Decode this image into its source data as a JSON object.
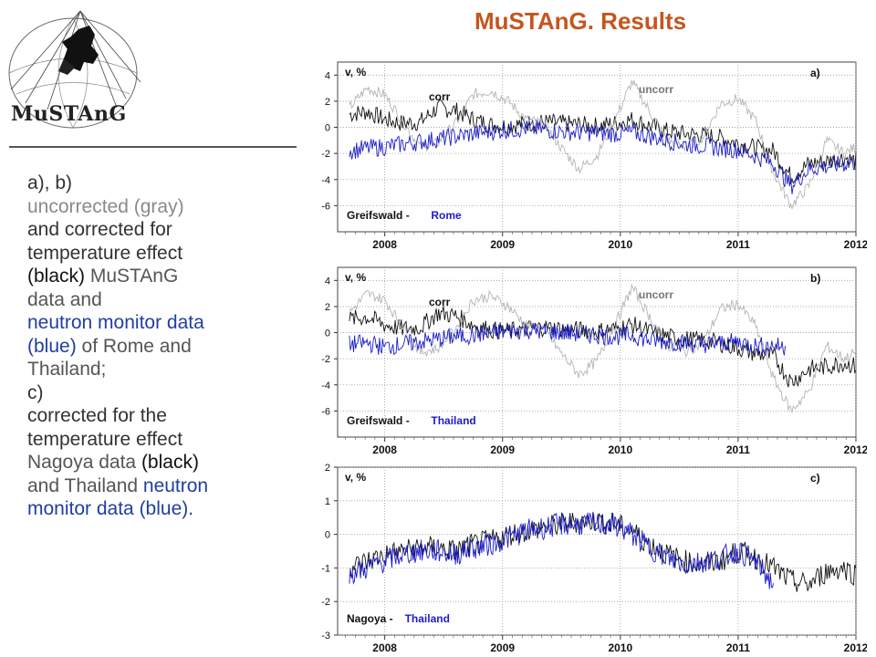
{
  "title": "MuSTAnG. Results",
  "logo": {
    "text": "MuSTAnG",
    "icon": "horse-over-globe-logo"
  },
  "description": {
    "line_ab": "a), b)",
    "uncorr_text": "uncorrected (gray)",
    "corr_line1": "and corrected for",
    "corr_line2": "temperature effect",
    "corr_line3a": "(black)",
    "corr_line3b": " MuSTAnG",
    "corr_line4": "data and",
    "nm_line1": "neutron monitor data",
    "nm_line2a": "(blue)",
    "nm_line2b": " of Rome and",
    "nm_line3": "Thailand;",
    "line_c": "c)",
    "c_line1": "corrected for the",
    "c_line2": "temperature effect",
    "c_line3a": "Nagoya data ",
    "c_line3b": "(black)",
    "c_line4a": "and  Thailand ",
    "c_line4b": "neutron",
    "c_line5": "monitor data (blue).",
    "colors": {
      "gray": "#8a8a8a",
      "blue": "#1f3f9f",
      "text": "#333333"
    }
  },
  "chart_data": [
    {
      "type": "line",
      "panel_label": "a)",
      "ylabel": "v, %",
      "ylim": [
        -8,
        5
      ],
      "yticks": [
        4,
        2,
        0,
        -2,
        -4,
        -6
      ],
      "xlim": [
        2007.6,
        2012.0
      ],
      "xticks": [
        "2008",
        "2009",
        "2010",
        "2011",
        "2012"
      ],
      "station_label_black": "Greifswald -",
      "station_label_blue": "Rome",
      "annotations": [
        "corr",
        "uncorr"
      ],
      "series": [
        {
          "name": "corr",
          "color": "#111111",
          "x": [
            2007.7,
            2007.85,
            2008.0,
            2008.15,
            2008.3,
            2008.45,
            2008.6,
            2008.75,
            2008.9,
            2009.05,
            2009.2,
            2009.35,
            2009.5,
            2009.65,
            2009.8,
            2009.95,
            2010.1,
            2010.25,
            2010.4,
            2010.55,
            2010.7,
            2010.85,
            2011.0,
            2011.15,
            2011.3,
            2011.45,
            2011.6,
            2011.75,
            2011.9,
            2012.0
          ],
          "y": [
            1,
            1.2,
            0.6,
            0.3,
            0.4,
            1.5,
            1.3,
            0.6,
            0.2,
            0.1,
            0.3,
            0.4,
            0.3,
            0.2,
            0.1,
            0.3,
            0.6,
            0.1,
            -0.3,
            -0.5,
            -0.6,
            -0.8,
            -1.2,
            -1.6,
            -1.8,
            -3.8,
            -2.8,
            -2.6,
            -2.3,
            -2.6
          ]
        },
        {
          "name": "uncorr",
          "color": "#b4b4b4",
          "x": [
            2007.7,
            2007.85,
            2008.0,
            2008.15,
            2008.3,
            2008.45,
            2008.6,
            2008.75,
            2008.9,
            2009.05,
            2009.2,
            2009.35,
            2009.5,
            2009.65,
            2009.8,
            2009.95,
            2010.1,
            2010.25,
            2010.4,
            2010.55,
            2010.7,
            2010.85,
            2011.0,
            2011.15,
            2011.3,
            2011.45,
            2011.6,
            2011.75,
            2011.9,
            2012.0
          ],
          "y": [
            1.5,
            3,
            2.5,
            0.5,
            -1.5,
            -1.2,
            0.3,
            2.5,
            2.8,
            2,
            0.6,
            0.3,
            -1.6,
            -3.2,
            -2.2,
            0.5,
            3.5,
            1.2,
            -1,
            -1.5,
            -0.8,
            1.8,
            2.2,
            0.5,
            -3.5,
            -6,
            -4.5,
            -1,
            -2,
            -1.5
          ]
        },
        {
          "name": "Rome",
          "color": "#1c1cc8",
          "x": [
            2007.7,
            2007.85,
            2008.0,
            2008.15,
            2008.3,
            2008.45,
            2008.6,
            2008.75,
            2008.9,
            2009.05,
            2009.2,
            2009.35,
            2009.5,
            2009.65,
            2009.8,
            2009.95,
            2010.1,
            2010.25,
            2010.4,
            2010.55,
            2010.7,
            2010.85,
            2011.0,
            2011.15,
            2011.3,
            2011.45,
            2011.6,
            2011.75,
            2011.9,
            2012.0
          ],
          "y": [
            -1.8,
            -1.6,
            -1.5,
            -1.3,
            -1.1,
            -0.9,
            -0.7,
            -0.5,
            -0.3,
            -0.2,
            -0.1,
            -0.2,
            -0.3,
            -0.4,
            -0.4,
            -0.5,
            -0.4,
            -0.7,
            -1,
            -1.3,
            -1.4,
            -1.6,
            -1.7,
            -2.2,
            -2.8,
            -4.5,
            -3.2,
            -3,
            -2.8,
            -2.7
          ]
        }
      ]
    },
    {
      "type": "line",
      "panel_label": "b)",
      "ylabel": "v, %",
      "ylim": [
        -8,
        5
      ],
      "yticks": [
        4,
        2,
        0,
        -2,
        -4,
        -6
      ],
      "xlim": [
        2007.6,
        2012.0
      ],
      "xticks": [
        "2008",
        "2009",
        "2010",
        "2011",
        "2012"
      ],
      "station_label_black": "Greifswald -",
      "station_label_blue": "Thailand",
      "annotations": [
        "corr",
        "uncorr"
      ],
      "series": [
        {
          "name": "corr",
          "color": "#111111",
          "x": [
            2007.7,
            2007.85,
            2008.0,
            2008.15,
            2008.3,
            2008.45,
            2008.6,
            2008.75,
            2008.9,
            2009.05,
            2009.2,
            2009.35,
            2009.5,
            2009.65,
            2009.8,
            2009.95,
            2010.1,
            2010.25,
            2010.4,
            2010.55,
            2010.7,
            2010.85,
            2011.0,
            2011.15,
            2011.3,
            2011.45,
            2011.6,
            2011.75,
            2011.9,
            2012.0
          ],
          "y": [
            1,
            1.2,
            0.6,
            0.3,
            0.4,
            1.5,
            1.3,
            0.6,
            0.2,
            0.1,
            0.3,
            0.4,
            0.3,
            0.2,
            0.1,
            0.3,
            0.6,
            0.1,
            -0.3,
            -0.5,
            -0.6,
            -0.8,
            -1.2,
            -1.6,
            -1.8,
            -3.8,
            -2.8,
            -2.6,
            -2.3,
            -2.6
          ]
        },
        {
          "name": "uncorr",
          "color": "#b4b4b4",
          "x": [
            2007.7,
            2007.85,
            2008.0,
            2008.15,
            2008.3,
            2008.45,
            2008.6,
            2008.75,
            2008.9,
            2009.05,
            2009.2,
            2009.35,
            2009.5,
            2009.65,
            2009.8,
            2009.95,
            2010.1,
            2010.25,
            2010.4,
            2010.55,
            2010.7,
            2010.85,
            2011.0,
            2011.15,
            2011.3,
            2011.45,
            2011.6,
            2011.75,
            2011.9,
            2012.0
          ],
          "y": [
            1.5,
            3,
            2.5,
            0.5,
            -1.5,
            -1.2,
            0.3,
            2.5,
            2.8,
            2,
            0.6,
            0.3,
            -1.6,
            -3.2,
            -2.2,
            0.5,
            3.5,
            1.2,
            -1,
            -1.5,
            -0.8,
            1.8,
            2.2,
            0.5,
            -3.5,
            -6,
            -4.5,
            -1,
            -2,
            -1.5
          ]
        },
        {
          "name": "Thailand",
          "color": "#1c1cc8",
          "x": [
            2007.7,
            2007.85,
            2008.0,
            2008.15,
            2008.3,
            2008.45,
            2008.6,
            2008.75,
            2008.9,
            2009.05,
            2009.2,
            2009.35,
            2009.5,
            2009.65,
            2009.8,
            2009.95,
            2010.1,
            2010.25,
            2010.4,
            2010.55,
            2010.7,
            2010.85,
            2011.0,
            2011.15,
            2011.3,
            2011.4
          ],
          "y": [
            -0.9,
            -0.8,
            -1.1,
            -0.9,
            -0.7,
            -0.5,
            -0.3,
            -0.2,
            0,
            0.1,
            0.2,
            0.1,
            0,
            -0.1,
            -0.2,
            -0.3,
            -0.2,
            -0.6,
            -0.7,
            -0.8,
            -0.9,
            -0.8,
            -0.7,
            -1,
            -1,
            -1.1
          ]
        }
      ]
    },
    {
      "type": "line",
      "panel_label": "c)",
      "ylabel": "v, %",
      "ylim": [
        -3,
        2
      ],
      "yticks": [
        2,
        1,
        0,
        -1,
        -2,
        -3
      ],
      "xlim": [
        2007.6,
        2012.0
      ],
      "xticks": [
        "2008",
        "2009",
        "2010",
        "2011",
        "2012"
      ],
      "station_label_black": "Nagoya -",
      "station_label_blue": "Thailand",
      "annotations": [],
      "series": [
        {
          "name": "Nagoya",
          "color": "#111111",
          "x": [
            2007.7,
            2007.85,
            2008.0,
            2008.15,
            2008.3,
            2008.45,
            2008.6,
            2008.75,
            2008.9,
            2009.05,
            2009.2,
            2009.35,
            2009.5,
            2009.65,
            2009.8,
            2009.95,
            2010.1,
            2010.25,
            2010.4,
            2010.55,
            2010.7,
            2010.85,
            2011.0,
            2011.15,
            2011.3,
            2011.45,
            2011.6,
            2011.75,
            2011.9,
            2012.0
          ],
          "y": [
            -1,
            -0.8,
            -0.6,
            -0.5,
            -0.4,
            -0.4,
            -0.5,
            -0.3,
            -0.2,
            0,
            0.1,
            0.2,
            0.3,
            0.4,
            0.4,
            0.3,
            0.1,
            -0.3,
            -0.6,
            -0.8,
            -0.9,
            -0.8,
            -0.5,
            -0.7,
            -1,
            -1.4,
            -1.5,
            -1.1,
            -1,
            -1.2
          ]
        },
        {
          "name": "Thailand",
          "color": "#1c1cc8",
          "x": [
            2007.7,
            2007.85,
            2008.0,
            2008.15,
            2008.3,
            2008.45,
            2008.6,
            2008.75,
            2008.9,
            2009.05,
            2009.2,
            2009.35,
            2009.5,
            2009.65,
            2009.8,
            2009.95,
            2010.1,
            2010.25,
            2010.4,
            2010.55,
            2010.7,
            2010.85,
            2011.0,
            2011.15,
            2011.3
          ],
          "y": [
            -1.2,
            -1,
            -0.8,
            -0.6,
            -0.5,
            -0.5,
            -0.6,
            -0.4,
            -0.3,
            -0.1,
            0.1,
            0.2,
            0.3,
            0.3,
            0.3,
            0.3,
            0,
            -0.4,
            -0.7,
            -0.9,
            -0.8,
            -0.7,
            -0.5,
            -0.8,
            -1.5
          ]
        }
      ]
    }
  ]
}
